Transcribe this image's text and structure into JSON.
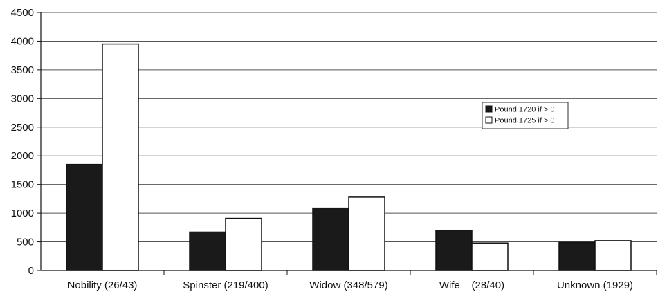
{
  "chart_data": {
    "type": "bar",
    "title": "",
    "xlabel": "",
    "ylabel": "",
    "categories": [
      "Nobility (26/43)",
      "Spinster (219/400)",
      "Widow (348/579)",
      "Wife    (28/40)",
      "Unknown (1929)"
    ],
    "series": [
      {
        "name": "Pound 1720 if > 0",
        "values": [
          1850,
          670,
          1090,
          700,
          490
        ],
        "color": "#1a1a1a"
      },
      {
        "name": "Pound 1725 if > 0",
        "values": [
          3950,
          910,
          1280,
          480,
          520
        ],
        "color": "#ffffff"
      }
    ],
    "ylim": [
      0,
      4500
    ],
    "yticks": [
      "0",
      "500",
      "1000",
      "1500",
      "2000",
      "2500",
      "3000",
      "3500",
      "4000",
      "4500"
    ],
    "grid": true,
    "legend_position": "right"
  }
}
